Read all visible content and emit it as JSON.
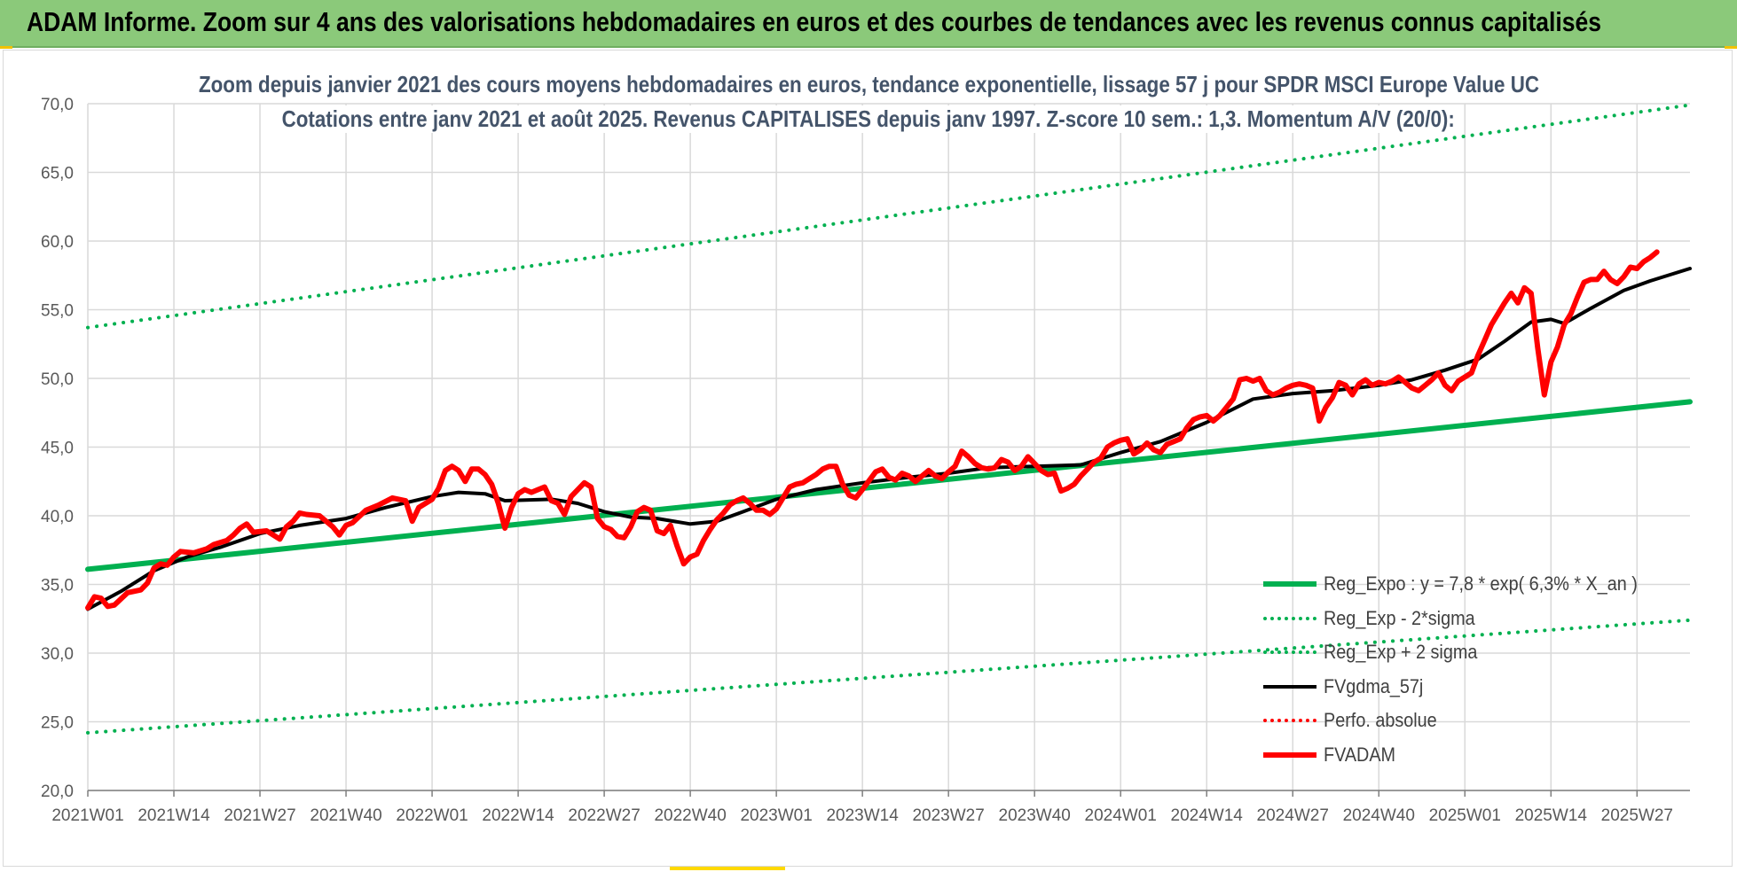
{
  "banner": {
    "title": "ADAM Informe. Zoom sur 4 ans des valorisations hebdomadaires en euros et des courbes de tendances avec les revenus connus capitalisés"
  },
  "chart_data": {
    "type": "line",
    "subtitle_line1": "Zoom depuis janvier 2021 des cours moyens hebdomadaires en euros, tendance exponentielle, lissage 57 j pour SPDR MSCI Europe Value UC",
    "subtitle_line2": "Cotations entre janv 2021 et août 2025. Revenus CAPITALISES depuis janv 1997. Z-score 10 sem.: 1,3. Momentum A/V (20/0):",
    "ylim": [
      20,
      70
    ],
    "y_ticks": [
      "70,0",
      "65,0",
      "60,0",
      "55,0",
      "50,0",
      "45,0",
      "40,0",
      "35,0",
      "30,0",
      "25,0",
      "20,0"
    ],
    "x_count": 243,
    "x_ticks": [
      {
        "i": 0,
        "label": "2021W01"
      },
      {
        "i": 13,
        "label": "2021W14"
      },
      {
        "i": 26,
        "label": "2021W27"
      },
      {
        "i": 39,
        "label": "2021W40"
      },
      {
        "i": 52,
        "label": "2022W01"
      },
      {
        "i": 65,
        "label": "2022W14"
      },
      {
        "i": 78,
        "label": "2022W27"
      },
      {
        "i": 91,
        "label": "2022W40"
      },
      {
        "i": 104,
        "label": "2023W01"
      },
      {
        "i": 117,
        "label": "2023W14"
      },
      {
        "i": 130,
        "label": "2023W27"
      },
      {
        "i": 143,
        "label": "2023W40"
      },
      {
        "i": 156,
        "label": "2024W01"
      },
      {
        "i": 169,
        "label": "2024W14"
      },
      {
        "i": 182,
        "label": "2024W27"
      },
      {
        "i": 195,
        "label": "2024W40"
      },
      {
        "i": 208,
        "label": "2025W01"
      },
      {
        "i": 221,
        "label": "2025W14"
      },
      {
        "i": 234,
        "label": "2025W27"
      }
    ],
    "series": [
      {
        "key": "reg_expo",
        "name": "Reg_Expo : y = 7,8 * exp( 6,3% *  X_an )",
        "color": "#00b050",
        "style": "solid",
        "width": 6,
        "points": [
          [
            0,
            36.1
          ],
          [
            242,
            48.3
          ]
        ]
      },
      {
        "key": "reg_minus",
        "name": "Reg_Exp - 2*sigma",
        "color": "#00b050",
        "style": "dotted",
        "width": 4,
        "points": [
          [
            0,
            24.2
          ],
          [
            242,
            32.4
          ]
        ]
      },
      {
        "key": "reg_plus",
        "name": "Reg_Exp + 2 sigma",
        "color": "#00b050",
        "style": "dotted",
        "width": 4,
        "points": [
          [
            0,
            53.7
          ],
          [
            242,
            69.9
          ]
        ]
      },
      {
        "key": "fvgdma",
        "name": "FVgdma_57j",
        "color": "#000000",
        "style": "solid",
        "width": 4,
        "points": [
          [
            0,
            33.2
          ],
          [
            5,
            34.5
          ],
          [
            10,
            36.0
          ],
          [
            15,
            37.0
          ],
          [
            20,
            37.7
          ],
          [
            26,
            38.7
          ],
          [
            32,
            39.3
          ],
          [
            39,
            39.8
          ],
          [
            45,
            40.6
          ],
          [
            52,
            41.4
          ],
          [
            56,
            41.7
          ],
          [
            60,
            41.6
          ],
          [
            63,
            41.1
          ],
          [
            70,
            41.2
          ],
          [
            74,
            40.9
          ],
          [
            78,
            40.3
          ],
          [
            82,
            39.9
          ],
          [
            86,
            39.8
          ],
          [
            91,
            39.4
          ],
          [
            95,
            39.6
          ],
          [
            99,
            40.3
          ],
          [
            104,
            41.2
          ],
          [
            110,
            41.9
          ],
          [
            117,
            42.4
          ],
          [
            124,
            42.8
          ],
          [
            130,
            43.1
          ],
          [
            136,
            43.5
          ],
          [
            143,
            43.6
          ],
          [
            150,
            43.7
          ],
          [
            156,
            44.6
          ],
          [
            162,
            45.4
          ],
          [
            169,
            46.8
          ],
          [
            176,
            48.5
          ],
          [
            182,
            48.9
          ],
          [
            188,
            49.1
          ],
          [
            195,
            49.5
          ],
          [
            200,
            49.9
          ],
          [
            205,
            50.6
          ],
          [
            210,
            51.4
          ],
          [
            214,
            52.7
          ],
          [
            218,
            54.1
          ],
          [
            221,
            54.3
          ],
          [
            223,
            54.0
          ],
          [
            227,
            55.1
          ],
          [
            232,
            56.4
          ],
          [
            236,
            57.1
          ],
          [
            242,
            58.0
          ]
        ]
      },
      {
        "key": "fvadam",
        "name": "FVADAM",
        "color": "#ff0000",
        "style": "solid",
        "width": 6,
        "points": [
          [
            0,
            33.3
          ],
          [
            1,
            34.1
          ],
          [
            2,
            34.0
          ],
          [
            3,
            33.4
          ],
          [
            4,
            33.5
          ],
          [
            6,
            34.4
          ],
          [
            8,
            34.6
          ],
          [
            9,
            35.1
          ],
          [
            10,
            36.2
          ],
          [
            11,
            36.5
          ],
          [
            12,
            36.4
          ],
          [
            13,
            37.0
          ],
          [
            14,
            37.4
          ],
          [
            16,
            37.3
          ],
          [
            18,
            37.6
          ],
          [
            19,
            37.9
          ],
          [
            21,
            38.2
          ],
          [
            22,
            38.6
          ],
          [
            23,
            39.1
          ],
          [
            24,
            39.4
          ],
          [
            25,
            38.8
          ],
          [
            27,
            38.9
          ],
          [
            28,
            38.6
          ],
          [
            29,
            38.3
          ],
          [
            30,
            39.2
          ],
          [
            31,
            39.6
          ],
          [
            32,
            40.2
          ],
          [
            33,
            40.1
          ],
          [
            35,
            40.0
          ],
          [
            37,
            39.2
          ],
          [
            38,
            38.6
          ],
          [
            39,
            39.3
          ],
          [
            40,
            39.5
          ],
          [
            42,
            40.4
          ],
          [
            44,
            40.8
          ],
          [
            46,
            41.3
          ],
          [
            48,
            41.1
          ],
          [
            49,
            39.6
          ],
          [
            50,
            40.6
          ],
          [
            52,
            41.2
          ],
          [
            53,
            42.0
          ],
          [
            54,
            43.3
          ],
          [
            55,
            43.6
          ],
          [
            56,
            43.3
          ],
          [
            57,
            42.5
          ],
          [
            58,
            43.4
          ],
          [
            59,
            43.4
          ],
          [
            60,
            43.0
          ],
          [
            61,
            42.3
          ],
          [
            62,
            40.9
          ],
          [
            63,
            39.1
          ],
          [
            64,
            40.6
          ],
          [
            65,
            41.6
          ],
          [
            66,
            41.9
          ],
          [
            67,
            41.7
          ],
          [
            68,
            41.9
          ],
          [
            69,
            42.1
          ],
          [
            70,
            41.1
          ],
          [
            71,
            40.9
          ],
          [
            72,
            40.1
          ],
          [
            73,
            41.4
          ],
          [
            75,
            42.4
          ],
          [
            76,
            42.1
          ],
          [
            77,
            39.8
          ],
          [
            78,
            39.2
          ],
          [
            79,
            39.0
          ],
          [
            80,
            38.5
          ],
          [
            81,
            38.4
          ],
          [
            82,
            39.2
          ],
          [
            83,
            40.3
          ],
          [
            84,
            40.6
          ],
          [
            85,
            40.4
          ],
          [
            86,
            38.9
          ],
          [
            87,
            38.7
          ],
          [
            88,
            39.3
          ],
          [
            89,
            37.8
          ],
          [
            90,
            36.5
          ],
          [
            91,
            37.0
          ],
          [
            92,
            37.2
          ],
          [
            93,
            38.2
          ],
          [
            94,
            39.0
          ],
          [
            95,
            39.7
          ],
          [
            96,
            40.2
          ],
          [
            97,
            40.8
          ],
          [
            98,
            41.1
          ],
          [
            99,
            41.3
          ],
          [
            100,
            40.9
          ],
          [
            101,
            40.4
          ],
          [
            102,
            40.4
          ],
          [
            103,
            40.1
          ],
          [
            104,
            40.5
          ],
          [
            105,
            41.3
          ],
          [
            106,
            42.1
          ],
          [
            107,
            42.3
          ],
          [
            108,
            42.4
          ],
          [
            109,
            42.7
          ],
          [
            110,
            43.0
          ],
          [
            111,
            43.4
          ],
          [
            112,
            43.6
          ],
          [
            113,
            43.6
          ],
          [
            114,
            42.3
          ],
          [
            115,
            41.5
          ],
          [
            116,
            41.3
          ],
          [
            117,
            41.9
          ],
          [
            119,
            43.2
          ],
          [
            120,
            43.4
          ],
          [
            121,
            42.8
          ],
          [
            122,
            42.6
          ],
          [
            123,
            43.1
          ],
          [
            124,
            42.9
          ],
          [
            125,
            42.5
          ],
          [
            127,
            43.3
          ],
          [
            128,
            42.9
          ],
          [
            129,
            42.7
          ],
          [
            130,
            43.2
          ],
          [
            131,
            43.6
          ],
          [
            132,
            44.7
          ],
          [
            133,
            44.3
          ],
          [
            134,
            43.8
          ],
          [
            135,
            43.5
          ],
          [
            136,
            43.4
          ],
          [
            137,
            43.5
          ],
          [
            138,
            44.1
          ],
          [
            139,
            43.9
          ],
          [
            140,
            43.3
          ],
          [
            141,
            43.6
          ],
          [
            142,
            44.3
          ],
          [
            143,
            43.8
          ],
          [
            144,
            43.3
          ],
          [
            145,
            43.0
          ],
          [
            146,
            43.1
          ],
          [
            147,
            41.8
          ],
          [
            148,
            42.0
          ],
          [
            149,
            42.3
          ],
          [
            150,
            42.9
          ],
          [
            151,
            43.4
          ],
          [
            152,
            43.9
          ],
          [
            153,
            44.2
          ],
          [
            154,
            45.0
          ],
          [
            155,
            45.3
          ],
          [
            156,
            45.5
          ],
          [
            157,
            45.6
          ],
          [
            158,
            44.5
          ],
          [
            159,
            44.8
          ],
          [
            160,
            45.3
          ],
          [
            161,
            44.8
          ],
          [
            162,
            44.6
          ],
          [
            163,
            45.2
          ],
          [
            164,
            45.4
          ],
          [
            165,
            45.6
          ],
          [
            166,
            46.4
          ],
          [
            167,
            47.0
          ],
          [
            168,
            47.2
          ],
          [
            169,
            47.3
          ],
          [
            170,
            46.9
          ],
          [
            171,
            47.3
          ],
          [
            172,
            47.9
          ],
          [
            173,
            48.5
          ],
          [
            174,
            49.9
          ],
          [
            175,
            50.0
          ],
          [
            176,
            49.8
          ],
          [
            177,
            50.0
          ],
          [
            178,
            49.1
          ],
          [
            179,
            48.8
          ],
          [
            180,
            49.0
          ],
          [
            181,
            49.3
          ],
          [
            182,
            49.5
          ],
          [
            183,
            49.6
          ],
          [
            184,
            49.5
          ],
          [
            185,
            49.3
          ],
          [
            186,
            46.9
          ],
          [
            187,
            47.9
          ],
          [
            188,
            48.6
          ],
          [
            189,
            49.7
          ],
          [
            190,
            49.5
          ],
          [
            191,
            48.8
          ],
          [
            192,
            49.6
          ],
          [
            193,
            49.9
          ],
          [
            194,
            49.5
          ],
          [
            195,
            49.7
          ],
          [
            196,
            49.6
          ],
          [
            197,
            49.8
          ],
          [
            198,
            50.1
          ],
          [
            199,
            49.7
          ],
          [
            200,
            49.3
          ],
          [
            201,
            49.1
          ],
          [
            202,
            49.5
          ],
          [
            203,
            49.9
          ],
          [
            204,
            50.4
          ],
          [
            205,
            49.5
          ],
          [
            206,
            49.1
          ],
          [
            207,
            49.8
          ],
          [
            208,
            50.1
          ],
          [
            209,
            50.4
          ],
          [
            210,
            51.7
          ],
          [
            211,
            52.8
          ],
          [
            212,
            53.9
          ],
          [
            213,
            54.7
          ],
          [
            214,
            55.5
          ],
          [
            215,
            56.2
          ],
          [
            216,
            55.5
          ],
          [
            217,
            56.6
          ],
          [
            218,
            56.2
          ],
          [
            219,
            52.2
          ],
          [
            220,
            48.8
          ],
          [
            221,
            51.2
          ],
          [
            222,
            52.3
          ],
          [
            223,
            53.9
          ],
          [
            224,
            54.7
          ],
          [
            225,
            55.9
          ],
          [
            226,
            57.0
          ],
          [
            227,
            57.2
          ],
          [
            228,
            57.2
          ],
          [
            229,
            57.8
          ],
          [
            230,
            57.2
          ],
          [
            231,
            56.9
          ],
          [
            232,
            57.4
          ],
          [
            233,
            58.1
          ],
          [
            234,
            58.0
          ],
          [
            235,
            58.5
          ],
          [
            236,
            58.8
          ],
          [
            237,
            59.2
          ]
        ]
      },
      {
        "key": "perfo",
        "name": "Perfo. absolue",
        "color": "#ff0000",
        "style": "dotted",
        "width": 4,
        "points": []
      }
    ],
    "legend_order": [
      "reg_expo",
      "reg_minus",
      "reg_plus",
      "fvgdma",
      "perfo",
      "fvadam"
    ],
    "legend_placement": "bottom-right inside plot",
    "grid": "horizontal and vertical"
  }
}
